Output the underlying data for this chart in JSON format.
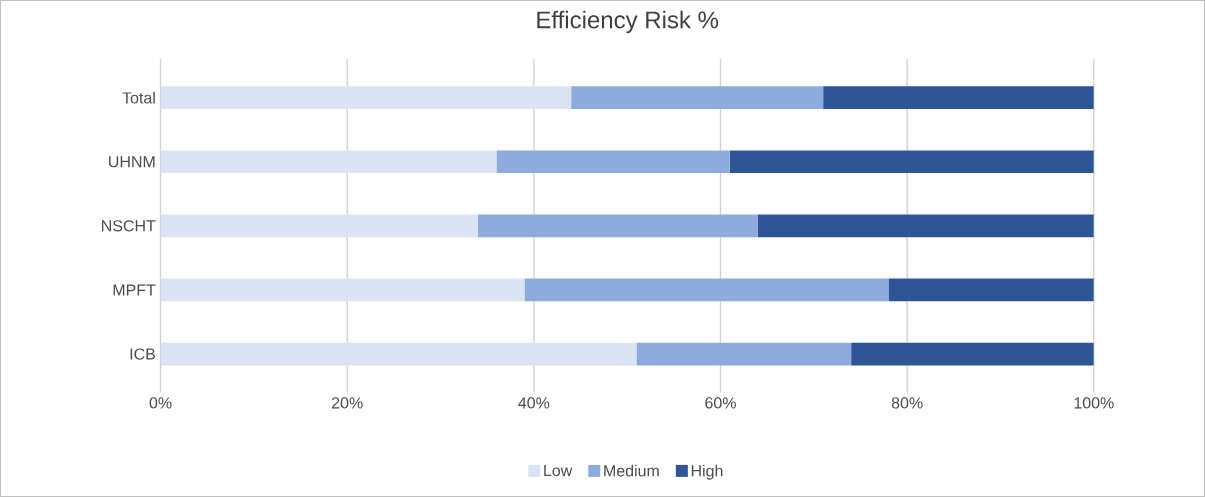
{
  "chart_data": {
    "type": "bar",
    "orientation": "horizontal",
    "stacked": true,
    "title": "Efficiency Risk %",
    "categories": [
      "Total",
      "UHNM",
      "NSCHT",
      "MPFT",
      "ICB"
    ],
    "series": [
      {
        "name": "Low",
        "color": "#dae3f3",
        "values": [
          44,
          36,
          34,
          39,
          51
        ]
      },
      {
        "name": "Medium",
        "color": "#8faadc",
        "values": [
          27,
          25,
          30,
          39,
          23
        ]
      },
      {
        "name": "High",
        "color": "#2f5597",
        "values": [
          29,
          39,
          36,
          22,
          26
        ]
      }
    ],
    "xlim": [
      0,
      100
    ],
    "xticks": [
      {
        "value": 0,
        "label": "0%"
      },
      {
        "value": 20,
        "label": "20%"
      },
      {
        "value": 40,
        "label": "40%"
      },
      {
        "value": 60,
        "label": "60%"
      },
      {
        "value": 80,
        "label": "80%"
      },
      {
        "value": 100,
        "label": "100%"
      }
    ],
    "grid": "x",
    "legend": "bottom"
  }
}
